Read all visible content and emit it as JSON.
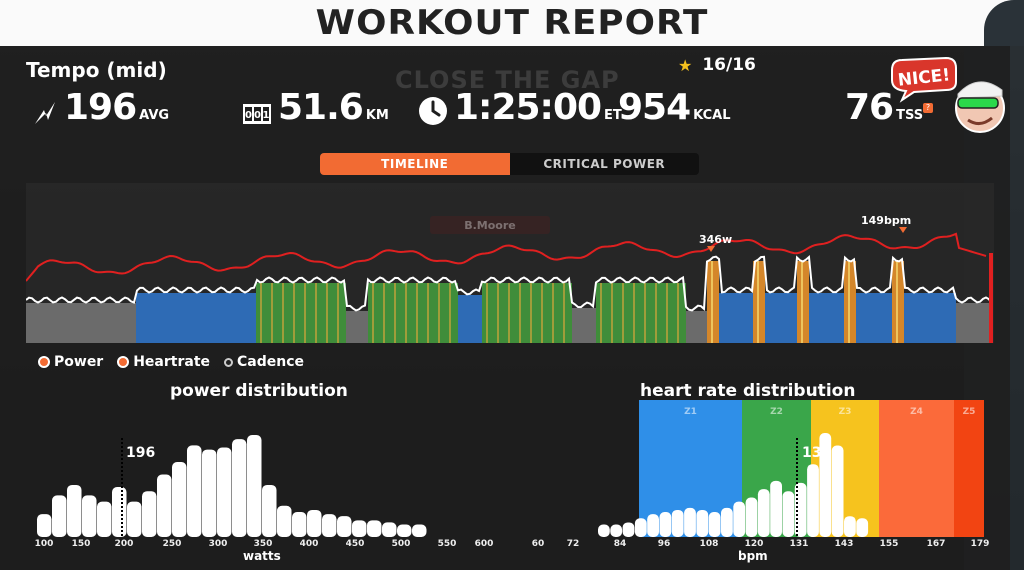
{
  "report": {
    "title": "WORKOUT REPORT",
    "workout_name": "Tempo (mid)",
    "background_text": "CLOSE THE GAP",
    "background_badge": "B.Moore",
    "stars": "16/16",
    "stats": {
      "power_value": "196",
      "power_unit": "AVG",
      "distance_value": "51.6",
      "distance_unit": "KM",
      "time_value": "1:25:00",
      "time_unit": "ET",
      "calories_value": "954",
      "calories_unit": "KCAL",
      "tss_value": "76",
      "tss_unit": "TSS",
      "tss_badge": "?"
    },
    "badge_text": "NICE!"
  },
  "tabs": [
    {
      "label": "TIMELINE",
      "active": true
    },
    {
      "label": "CRITICAL POWER",
      "active": false
    }
  ],
  "timeline": {
    "annotation_power": "346w",
    "annotation_hr": "149bpm",
    "colors": {
      "heartrate": "#e02020",
      "gray": "#6b6b6b",
      "blue": "#2e6bb5",
      "green": "#3f8d3a",
      "orange": "#d4862a"
    }
  },
  "legend": [
    {
      "label": "Power",
      "icon": "orange-dot"
    },
    {
      "label": "Heartrate",
      "icon": "orange-dot"
    },
    {
      "label": "Cadence",
      "icon": "white-dot"
    }
  ],
  "chart_data": [
    {
      "type": "bar",
      "title": "power distribution",
      "xlabel": "watts",
      "x_ticks": [
        "100",
        "150",
        "200",
        "250",
        "300",
        "350",
        "400",
        "450",
        "500",
        "550",
        "600",
        "60",
        "72"
      ],
      "categories": [
        100,
        110,
        120,
        130,
        140,
        150,
        160,
        170,
        180,
        190,
        200,
        210,
        220,
        230,
        240,
        250,
        260,
        270,
        280,
        290,
        300,
        310,
        320,
        330,
        340,
        350
      ],
      "values": [
        22,
        40,
        50,
        40,
        34,
        48,
        34,
        44,
        60,
        72,
        88,
        84,
        86,
        94,
        98,
        50,
        30,
        24,
        26,
        22,
        20,
        16,
        16,
        14,
        12,
        12
      ],
      "average_label": "196",
      "average_x": 196
    },
    {
      "type": "bar",
      "title": "heart rate distribution",
      "xlabel": "bpm",
      "x_ticks": [
        "84",
        "96",
        "108",
        "120",
        "131",
        "143",
        "155",
        "167",
        "179"
      ],
      "zones": [
        {
          "name": "Z1",
          "color": "#2f8fe8"
        },
        {
          "name": "Z2",
          "color": "#3aa64a"
        },
        {
          "name": "Z3",
          "color": "#f6c31e"
        },
        {
          "name": "Z4",
          "color": "#fb6a3a"
        },
        {
          "name": "Z5",
          "color": "#f24412"
        }
      ],
      "categories": [
        84,
        87,
        90,
        93,
        96,
        99,
        102,
        105,
        108,
        111,
        114,
        117,
        120,
        123,
        126,
        129,
        132,
        135,
        138,
        141,
        144,
        147
      ],
      "values": [
        12,
        12,
        14,
        18,
        22,
        24,
        26,
        28,
        26,
        24,
        28,
        34,
        38,
        46,
        54,
        44,
        52,
        70,
        100,
        88,
        20,
        18
      ],
      "average_label": "130",
      "average_x": 130
    }
  ]
}
